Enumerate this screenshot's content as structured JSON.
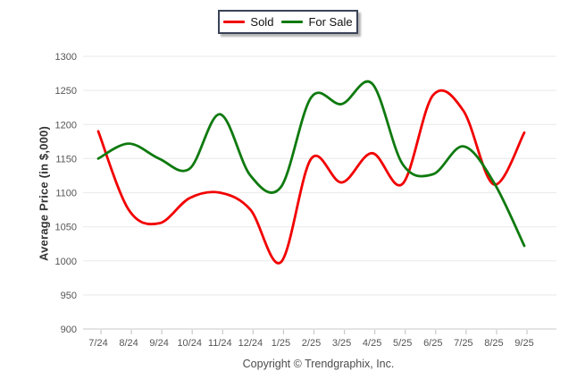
{
  "legend": {
    "items": [
      {
        "label": "Sold",
        "color": "#f20000"
      },
      {
        "label": "For Sale",
        "color": "#0f7a0f"
      }
    ]
  },
  "chart_data": {
    "type": "line",
    "title": "",
    "ylabel": "Average Price (in $,000)",
    "xlabel": "",
    "ylim": [
      900,
      1300
    ],
    "yticks": [
      "1300",
      "1250",
      "1200",
      "1150",
      "1100",
      "1050",
      "1000",
      "950",
      "900"
    ],
    "grid": "horizontal",
    "legend_position": "top-center",
    "smoothing": "spline",
    "categories": [
      "7/24",
      "8/24",
      "9/24",
      "10/24",
      "11/24",
      "12/24",
      "1/25",
      "2/25",
      "3/25",
      "4/25",
      "5/25",
      "6/25",
      "7/25",
      "8/25",
      "9/25"
    ],
    "series": [
      {
        "name": "Sold",
        "color": "#f20000",
        "values": [
          1190,
          1075,
          1055,
          1092,
          1100,
          1075,
          998,
          1150,
          1115,
          1158,
          1113,
          1243,
          1220,
          1112,
          1188
        ]
      },
      {
        "name": "For Sale",
        "color": "#0f7a0f",
        "values": [
          1150,
          1172,
          1150,
          1135,
          1215,
          1125,
          1108,
          1240,
          1230,
          1260,
          1142,
          1127,
          1168,
          1115,
          1022
        ]
      }
    ]
  },
  "footer": {
    "copyright": "Copyright © Trendgraphix, Inc."
  }
}
